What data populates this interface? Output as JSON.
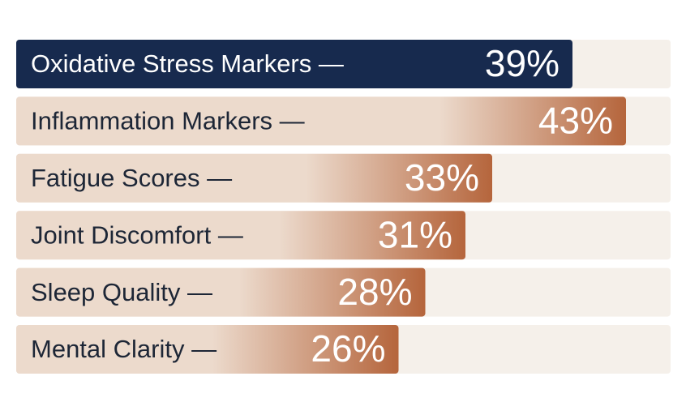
{
  "chart_data": {
    "type": "bar",
    "categories": [
      "Oxidative Stress Markers —",
      "Inflammation Markers —",
      "Fatigue Scores —",
      "Joint Discomfort —",
      "Sleep Quality —",
      "Mental Clarity —"
    ],
    "values": [
      39,
      43,
      33,
      31,
      28,
      26
    ],
    "value_labels": [
      "39%",
      "43%",
      "33%",
      "31%",
      "28%",
      "26%"
    ],
    "colors": [
      "#172a4e",
      "#b5653c",
      "#b5653c",
      "#b5653c",
      "#b5653c",
      "#b5653c"
    ]
  }
}
